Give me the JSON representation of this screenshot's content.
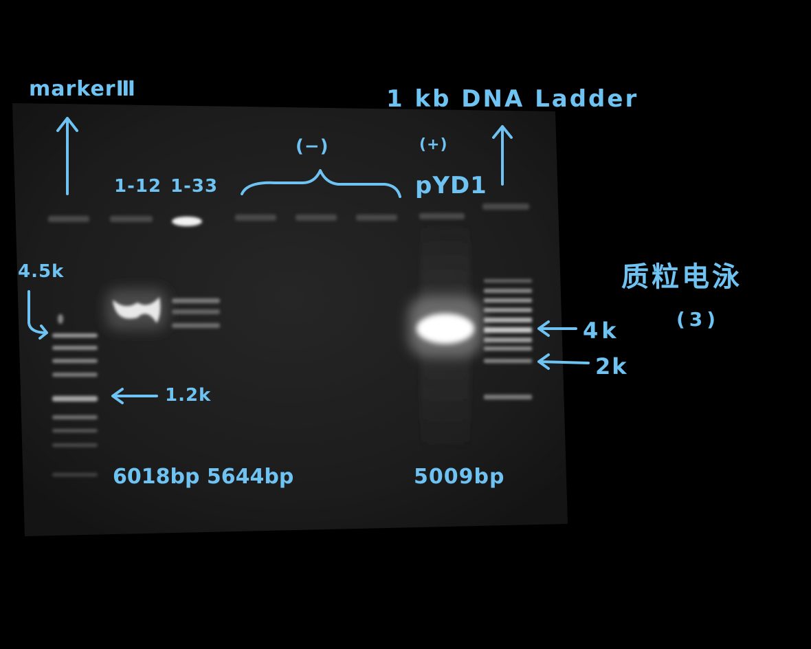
{
  "annotations": {
    "left_marker": "markerⅢ",
    "right_marker": "1 kb DNA Ladder",
    "negative_group": "(−)",
    "positive_group": "(+)",
    "positive_name": "pYD1",
    "lane_1_12": "1-12",
    "lane_1_33": "1-33",
    "marker_4_5k": "4.5k",
    "marker_1_2k": "1.2k",
    "ladder_4k": "4k",
    "ladder_2k": "2k",
    "title": "质粒电泳",
    "title_number": "(3)",
    "size_1_12_and_1_33": "6018bp 5644bp",
    "size_pyd1": "5009bp"
  },
  "colors": {
    "annotation": "#6fc3f2",
    "gel": "#1a1a1a",
    "background": "#000000",
    "band": "#ffffff"
  }
}
